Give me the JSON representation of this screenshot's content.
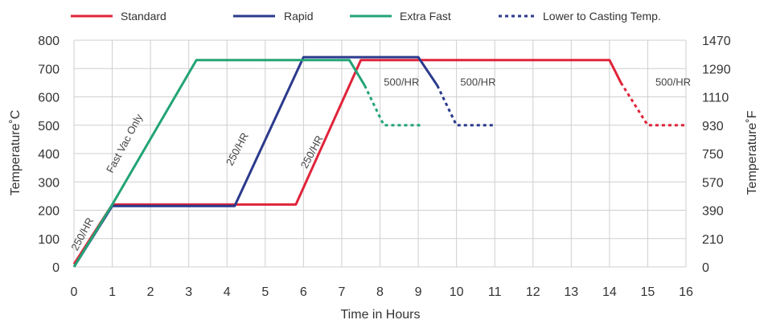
{
  "chart_data": {
    "type": "line",
    "xlabel": "Time in Hours",
    "ylabel": "Temperature˚C",
    "ylabel_right": "Temperature˚F",
    "xlim": [
      0,
      16
    ],
    "ylim": [
      0,
      800
    ],
    "x_ticks": [
      0,
      1,
      2,
      3,
      4,
      5,
      6,
      7,
      8,
      9,
      10,
      11,
      12,
      13,
      14,
      15,
      16
    ],
    "y_ticks": [
      0,
      100,
      200,
      300,
      400,
      500,
      600,
      700,
      800
    ],
    "y_right_ticks": [
      "0",
      "210",
      "390",
      "570",
      "750",
      "930",
      "1110",
      "1290",
      "1470"
    ],
    "grid": true,
    "legend_position": "top",
    "legend": [
      {
        "label": "Standard",
        "color": "#e0243a",
        "style": "solid"
      },
      {
        "label": "Rapid",
        "color": "#2b3a8c",
        "style": "solid"
      },
      {
        "label": "Extra Fast",
        "color": "#23a475",
        "style": "solid"
      },
      {
        "label": "Lower to Casting Temp.",
        "color": "#2b3a8c",
        "style": "dotted"
      }
    ],
    "series": [
      {
        "name": "Standard",
        "color": "#e0243a",
        "style": "solid",
        "points": [
          [
            0,
            10
          ],
          [
            1,
            220
          ],
          [
            4.1,
            220
          ],
          [
            5.8,
            220
          ],
          [
            7.5,
            730
          ],
          [
            14,
            730
          ],
          [
            14.3,
            650
          ]
        ]
      },
      {
        "name": "Standard",
        "color": "#e0243a",
        "style": "dotted",
        "points": [
          [
            14.3,
            650
          ],
          [
            15,
            500
          ],
          [
            16,
            500
          ]
        ]
      },
      {
        "name": "Rapid",
        "color": "#2b3a8c",
        "style": "solid",
        "points": [
          [
            0,
            0
          ],
          [
            1,
            215
          ],
          [
            4.2,
            215
          ],
          [
            6,
            740
          ],
          [
            9,
            740
          ],
          [
            9.5,
            640
          ]
        ]
      },
      {
        "name": "Rapid",
        "color": "#2b3a8c",
        "style": "dotted",
        "points": [
          [
            9.5,
            640
          ],
          [
            10,
            500
          ],
          [
            11,
            500
          ]
        ]
      },
      {
        "name": "Extra Fast",
        "color": "#23a475",
        "style": "solid",
        "points": [
          [
            0,
            0
          ],
          [
            1,
            220
          ],
          [
            3.2,
            730
          ],
          [
            7.2,
            730
          ],
          [
            7.6,
            640
          ]
        ]
      },
      {
        "name": "Extra Fast",
        "color": "#23a475",
        "style": "dotted",
        "points": [
          [
            7.6,
            640
          ],
          [
            8.1,
            500
          ],
          [
            9.1,
            500
          ]
        ]
      }
    ],
    "annotations": [
      {
        "text": "250/HR",
        "x": 0.3,
        "y": 110,
        "rotate": -62
      },
      {
        "text": "Fast Vac Only",
        "x": 1.4,
        "y": 430,
        "rotate": -62
      },
      {
        "text": "250/HR",
        "x": 4.35,
        "y": 410,
        "rotate": -62
      },
      {
        "text": "250/HR",
        "x": 6.3,
        "y": 400,
        "rotate": -62
      },
      {
        "text": "500/HR",
        "x": 8.1,
        "y": 640,
        "rotate": 0
      },
      {
        "text": "500/HR",
        "x": 10.1,
        "y": 640,
        "rotate": 0
      },
      {
        "text": "500/HR",
        "x": 15.2,
        "y": 640,
        "rotate": 0
      }
    ]
  }
}
